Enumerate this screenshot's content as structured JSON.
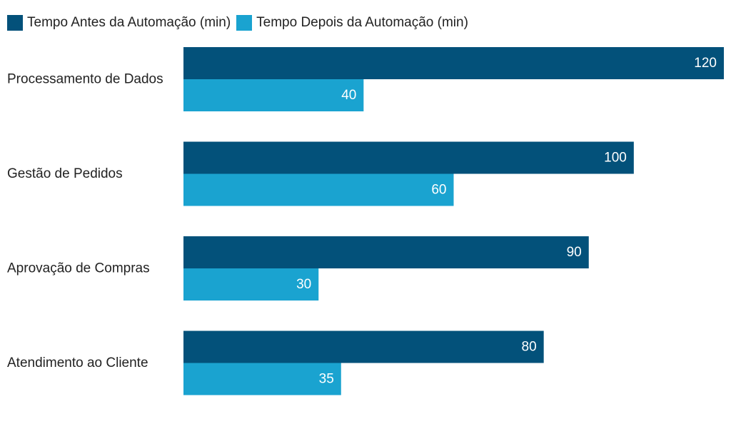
{
  "chart_data": {
    "type": "bar",
    "orientation": "horizontal",
    "categories": [
      "Processamento de Dados",
      "Gestão de Pedidos",
      "Aprovação de Compras",
      "Atendimento ao Cliente"
    ],
    "series": [
      {
        "name": "Tempo Antes da Automação (min)",
        "values": [
          120,
          100,
          90,
          80
        ],
        "color": "#03517a"
      },
      {
        "name": "Tempo Depois da Automação (min)",
        "values": [
          40,
          60,
          30,
          35
        ],
        "color": "#1aa3d0"
      }
    ],
    "xlim": [
      0,
      120
    ],
    "grid": false,
    "legend": "top-left",
    "data_labels": true
  }
}
